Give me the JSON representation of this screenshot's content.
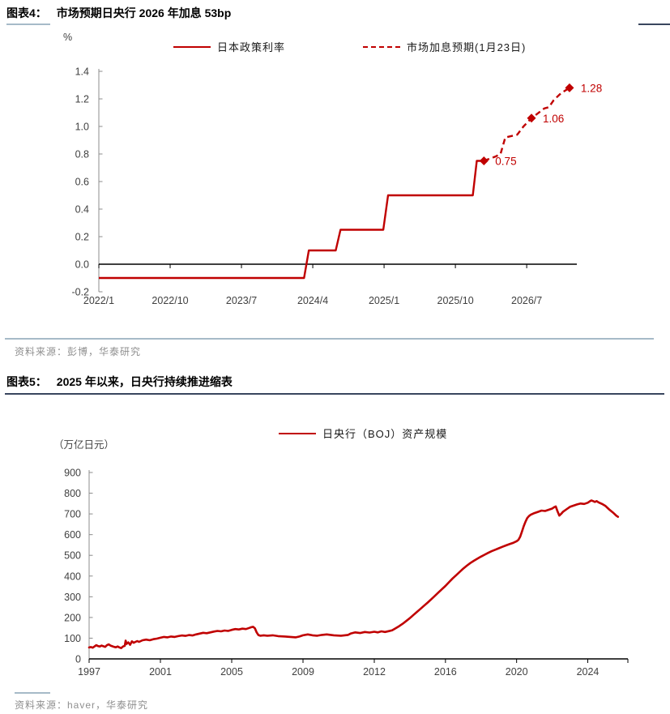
{
  "colors": {
    "accent_red": "#C00000",
    "axis_black": "#000000",
    "axis_gray": "#8C8C8C",
    "tick_label": "#404040",
    "source_gray": "#8F8F8F",
    "underline_dark": "#39465E",
    "divider_blue": "#A6BAC8"
  },
  "figure4": {
    "tag": "图表4：",
    "title": "市场预期日央行 2026 年加息 53bp",
    "unit": "%",
    "legend": [
      {
        "label": "日本政策利率",
        "style": "solid"
      },
      {
        "label": "市场加息预期(1月23日)",
        "style": "dashed"
      }
    ],
    "source": "资料来源：彭博，华泰研究"
  },
  "figure5": {
    "tag": "图表5：",
    "title": "2025 年以来，日央行持续推进缩表",
    "unit": "（万亿日元）",
    "legend": [
      {
        "label": "日央行（BOJ）资产规模",
        "style": "solid"
      }
    ],
    "source": "资料来源：haver，华泰研究"
  },
  "chart_data": [
    {
      "type": "line",
      "title": "市场预期日央行 2026 年加息 53bp",
      "ylabel": "%",
      "ylim": [
        -0.2,
        1.4
      ],
      "yticks": [
        -0.2,
        0.0,
        0.2,
        0.4,
        0.6,
        0.8,
        1.0,
        1.2,
        1.4
      ],
      "xtick_labels": [
        "2022/1",
        "2022/10",
        "2023/7",
        "2024/4",
        "2025/1",
        "2025/10",
        "2026/7"
      ],
      "xtick_months": [
        0,
        9,
        18,
        27,
        36,
        45,
        54
      ],
      "grid": false,
      "legend_position": "top",
      "zero_line": true,
      "series": [
        {
          "name": "日本政策利率",
          "style": "solid",
          "color": "#C00000",
          "points": [
            [
              0,
              -0.1
            ],
            [
              25.9,
              -0.1
            ],
            [
              26.5,
              0.1
            ],
            [
              29.9,
              0.1
            ],
            [
              30.5,
              0.25
            ],
            [
              35.9,
              0.25
            ],
            [
              36.5,
              0.5
            ],
            [
              47.2,
              0.5
            ],
            [
              47.7,
              0.75
            ],
            [
              48.6,
              0.75
            ]
          ],
          "note_steps": {
            "2022/1": -0.1,
            "2024/3": 0.1,
            "2024/7": 0.25,
            "2025/1": 0.5,
            "2025/12": 0.75
          }
        },
        {
          "name": "市场加息预期(1月23日)",
          "style": "dashed",
          "color": "#C00000",
          "points": [
            [
              48.6,
              0.75
            ],
            [
              50.0,
              0.78
            ],
            [
              50.7,
              0.8
            ],
            [
              51.3,
              0.92
            ],
            [
              52.8,
              0.94
            ],
            [
              53.6,
              1.0
            ],
            [
              54.6,
              1.06
            ],
            [
              55.3,
              1.09
            ],
            [
              56.2,
              1.13
            ],
            [
              56.8,
              1.14
            ],
            [
              57.4,
              1.19
            ],
            [
              58.3,
              1.24
            ],
            [
              59.4,
              1.28
            ]
          ],
          "markers": [
            {
              "x": 48.6,
              "y": 0.75,
              "label": "0.75"
            },
            {
              "x": 54.6,
              "y": 1.06,
              "label": "1.06"
            },
            {
              "x": 59.4,
              "y": 1.28,
              "label": "1.28"
            }
          ]
        }
      ]
    },
    {
      "type": "line",
      "title": "2025 年以来，日央行持续推进缩表",
      "ylabel": "（万亿日元）",
      "ylim": [
        0,
        900
      ],
      "yticks": [
        0,
        100,
        200,
        300,
        400,
        500,
        600,
        700,
        800,
        900
      ],
      "xtick_labels": [
        "1997",
        "2001",
        "2005",
        "2009",
        "2012",
        "2016",
        "2020",
        "2024"
      ],
      "xtick_years": [
        1997,
        2001,
        2005,
        2009,
        2012,
        2016,
        2020,
        2024
      ],
      "grid": false,
      "legend_position": "top",
      "series": [
        {
          "name": "日央行（BOJ）资产规模",
          "style": "solid",
          "color": "#C00000",
          "points": [
            [
              1997.0,
              55
            ],
            [
              1997.1,
              57
            ],
            [
              1997.2,
              54
            ],
            [
              1997.3,
              60
            ],
            [
              1997.4,
              66
            ],
            [
              1997.5,
              62
            ],
            [
              1997.6,
              60
            ],
            [
              1997.7,
              64
            ],
            [
              1997.8,
              61
            ],
            [
              1997.9,
              58
            ],
            [
              1998.0,
              66
            ],
            [
              1998.1,
              70
            ],
            [
              1998.2,
              64
            ],
            [
              1998.3,
              61
            ],
            [
              1998.4,
              58
            ],
            [
              1998.5,
              56
            ],
            [
              1998.6,
              60
            ],
            [
              1998.7,
              55
            ],
            [
              1998.8,
              52
            ],
            [
              1998.9,
              60
            ],
            [
              1999.0,
              63
            ],
            [
              1999.05,
              88
            ],
            [
              1999.1,
              72
            ],
            [
              1999.2,
              80
            ],
            [
              1999.3,
              68
            ],
            [
              1999.4,
              85
            ],
            [
              1999.5,
              78
            ],
            [
              1999.6,
              82
            ],
            [
              1999.7,
              86
            ],
            [
              1999.8,
              82
            ],
            [
              1999.9,
              86
            ],
            [
              2000.0,
              90
            ],
            [
              2000.2,
              93
            ],
            [
              2000.4,
              90
            ],
            [
              2000.6,
              95
            ],
            [
              2000.8,
              98
            ],
            [
              2001.0,
              102
            ],
            [
              2001.2,
              106
            ],
            [
              2001.4,
              104
            ],
            [
              2001.6,
              108
            ],
            [
              2001.8,
              106
            ],
            [
              2002.0,
              110
            ],
            [
              2002.2,
              113
            ],
            [
              2002.4,
              111
            ],
            [
              2002.6,
              115
            ],
            [
              2002.8,
              113
            ],
            [
              2003.0,
              118
            ],
            [
              2003.2,
              122
            ],
            [
              2003.4,
              126
            ],
            [
              2003.6,
              124
            ],
            [
              2003.8,
              128
            ],
            [
              2004.0,
              132
            ],
            [
              2004.2,
              135
            ],
            [
              2004.4,
              133
            ],
            [
              2004.6,
              137
            ],
            [
              2004.8,
              135
            ],
            [
              2005.0,
              140
            ],
            [
              2005.2,
              144
            ],
            [
              2005.4,
              142
            ],
            [
              2005.6,
              146
            ],
            [
              2005.8,
              144
            ],
            [
              2006.0,
              150
            ],
            [
              2006.1,
              153
            ],
            [
              2006.2,
              155
            ],
            [
              2006.3,
              148
            ],
            [
              2006.4,
              128
            ],
            [
              2006.5,
              115
            ],
            [
              2006.6,
              112
            ],
            [
              2006.8,
              114
            ],
            [
              2007.0,
              112
            ],
            [
              2007.3,
              114
            ],
            [
              2007.6,
              110
            ],
            [
              2008.0,
              108
            ],
            [
              2008.3,
              106
            ],
            [
              2008.6,
              104
            ],
            [
              2008.8,
              108
            ],
            [
              2009.0,
              114
            ],
            [
              2009.2,
              118
            ],
            [
              2009.4,
              114
            ],
            [
              2009.6,
              112
            ],
            [
              2009.8,
              116
            ],
            [
              2010.0,
              118
            ],
            [
              2010.3,
              114
            ],
            [
              2010.6,
              112
            ],
            [
              2010.9,
              116
            ],
            [
              2011.0,
              122
            ],
            [
              2011.2,
              128
            ],
            [
              2011.4,
              125
            ],
            [
              2011.6,
              130
            ],
            [
              2011.8,
              127
            ],
            [
              2012.0,
              131
            ],
            [
              2012.2,
              128
            ],
            [
              2012.4,
              133
            ],
            [
              2012.6,
              130
            ],
            [
              2012.8,
              134
            ],
            [
              2013.0,
              138
            ],
            [
              2013.2,
              148
            ],
            [
              2013.4,
              158
            ],
            [
              2013.6,
              170
            ],
            [
              2013.8,
              183
            ],
            [
              2014.0,
              197
            ],
            [
              2014.2,
              212
            ],
            [
              2014.4,
              227
            ],
            [
              2014.6,
              242
            ],
            [
              2014.8,
              257
            ],
            [
              2015.0,
              272
            ],
            [
              2015.2,
              288
            ],
            [
              2015.4,
              304
            ],
            [
              2015.6,
              320
            ],
            [
              2015.8,
              336
            ],
            [
              2016.0,
              352
            ],
            [
              2016.2,
              370
            ],
            [
              2016.4,
              388
            ],
            [
              2016.6,
              404
            ],
            [
              2016.8,
              420
            ],
            [
              2017.0,
              436
            ],
            [
              2017.2,
              450
            ],
            [
              2017.4,
              463
            ],
            [
              2017.6,
              474
            ],
            [
              2017.8,
              484
            ],
            [
              2018.0,
              494
            ],
            [
              2018.2,
              503
            ],
            [
              2018.4,
              512
            ],
            [
              2018.6,
              520
            ],
            [
              2018.8,
              527
            ],
            [
              2019.0,
              534
            ],
            [
              2019.2,
              541
            ],
            [
              2019.4,
              548
            ],
            [
              2019.6,
              554
            ],
            [
              2019.8,
              560
            ],
            [
              2020.0,
              568
            ],
            [
              2020.1,
              575
            ],
            [
              2020.2,
              590
            ],
            [
              2020.3,
              615
            ],
            [
              2020.4,
              640
            ],
            [
              2020.5,
              662
            ],
            [
              2020.6,
              680
            ],
            [
              2020.7,
              690
            ],
            [
              2020.8,
              696
            ],
            [
              2021.0,
              704
            ],
            [
              2021.2,
              710
            ],
            [
              2021.4,
              716
            ],
            [
              2021.6,
              714
            ],
            [
              2021.8,
              720
            ],
            [
              2022.0,
              726
            ],
            [
              2022.1,
              732
            ],
            [
              2022.2,
              736
            ],
            [
              2022.3,
              712
            ],
            [
              2022.4,
              692
            ],
            [
              2022.5,
              700
            ],
            [
              2022.6,
              710
            ],
            [
              2022.8,
              722
            ],
            [
              2023.0,
              734
            ],
            [
              2023.2,
              740
            ],
            [
              2023.4,
              746
            ],
            [
              2023.6,
              750
            ],
            [
              2023.8,
              748
            ],
            [
              2024.0,
              754
            ],
            [
              2024.1,
              760
            ],
            [
              2024.2,
              765
            ],
            [
              2024.3,
              762
            ],
            [
              2024.4,
              758
            ],
            [
              2024.5,
              762
            ],
            [
              2024.6,
              756
            ],
            [
              2024.8,
              748
            ],
            [
              2025.0,
              738
            ],
            [
              2025.2,
              722
            ],
            [
              2025.4,
              708
            ],
            [
              2025.5,
              700
            ],
            [
              2025.6,
              692
            ],
            [
              2025.7,
              686
            ]
          ]
        }
      ]
    }
  ]
}
